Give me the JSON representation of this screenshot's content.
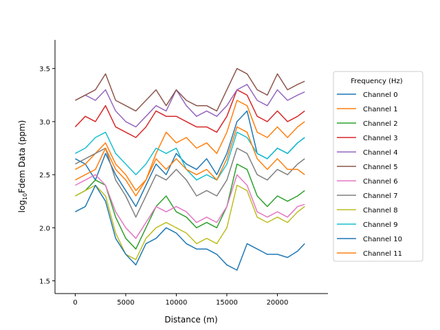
{
  "chart_data": {
    "type": "line",
    "xlabel": "Distance (m)",
    "ylabel_main": "log",
    "ylabel_sub": "10",
    "ylabel_rest": "Fdem Data (ppm)",
    "xlim": [
      -2000,
      25000
    ],
    "ylim": [
      1.38,
      3.77
    ],
    "xticks": [
      0,
      5000,
      10000,
      15000,
      20000
    ],
    "xtick_labels": [
      "0",
      "5000",
      "10000",
      "15000",
      "20000"
    ],
    "yticks": [
      1.5,
      2.0,
      2.5,
      3.0,
      3.5
    ],
    "ytick_labels": [
      "1.5",
      "2.0",
      "2.5",
      "3.0",
      "3.5"
    ],
    "legend": {
      "title": "Frequency (Hz)",
      "placement": "center-right"
    },
    "x": [
      0,
      1000,
      2000,
      3000,
      4000,
      5000,
      6000,
      7000,
      8000,
      9000,
      10000,
      11000,
      12000,
      13000,
      14000,
      15000,
      16000,
      17000,
      18000,
      19000,
      20000,
      21000,
      22000,
      22700
    ],
    "series": [
      {
        "name": "Channel 0",
        "color": "#1f77b4",
        "values": [
          2.65,
          2.6,
          2.45,
          2.7,
          2.5,
          2.35,
          2.2,
          2.4,
          2.6,
          2.5,
          2.7,
          2.6,
          2.55,
          2.65,
          2.5,
          2.7,
          3.0,
          3.1,
          2.7,
          2.65,
          2.75,
          2.7,
          2.8,
          2.85
        ]
      },
      {
        "name": "Channel 1",
        "color": "#ff7f0e",
        "values": [
          2.55,
          2.6,
          2.7,
          2.8,
          2.6,
          2.5,
          2.35,
          2.45,
          2.7,
          2.9,
          2.8,
          2.85,
          2.75,
          2.8,
          2.7,
          2.9,
          3.2,
          3.15,
          2.9,
          2.85,
          2.95,
          2.85,
          2.95,
          3.0
        ]
      },
      {
        "name": "Channel 2",
        "color": "#2ca02c",
        "values": [
          2.3,
          2.35,
          2.45,
          2.4,
          2.1,
          1.9,
          1.8,
          2.0,
          2.2,
          2.3,
          2.15,
          2.1,
          2.0,
          2.05,
          2.0,
          2.2,
          2.6,
          2.55,
          2.3,
          2.2,
          2.3,
          2.25,
          2.3,
          2.35
        ]
      },
      {
        "name": "Channel 3",
        "color": "#d62728",
        "values": [
          2.95,
          3.05,
          3.0,
          3.15,
          2.95,
          2.9,
          2.85,
          2.95,
          3.1,
          3.05,
          3.05,
          3.0,
          2.95,
          2.95,
          2.9,
          3.05,
          3.3,
          3.25,
          3.05,
          3.0,
          3.1,
          3.0,
          3.05,
          3.1
        ]
      },
      {
        "name": "Channel 4",
        "color": "#9467bd",
        "values": [
          3.2,
          3.25,
          3.2,
          3.3,
          3.1,
          3.0,
          2.95,
          3.05,
          3.15,
          3.1,
          3.3,
          3.15,
          3.05,
          3.1,
          3.05,
          3.15,
          3.3,
          3.35,
          3.2,
          3.15,
          3.3,
          3.2,
          3.25,
          3.28
        ]
      },
      {
        "name": "Channel 5",
        "color": "#8c564b",
        "values": [
          3.2,
          3.25,
          3.3,
          3.45,
          3.2,
          3.15,
          3.1,
          3.2,
          3.3,
          3.15,
          3.3,
          3.2,
          3.15,
          3.15,
          3.1,
          3.3,
          3.5,
          3.45,
          3.3,
          3.25,
          3.45,
          3.3,
          3.35,
          3.38
        ]
      },
      {
        "name": "Channel 6",
        "color": "#e377c2",
        "values": [
          2.4,
          2.45,
          2.5,
          2.4,
          2.15,
          2.0,
          1.9,
          2.05,
          2.2,
          2.15,
          2.2,
          2.15,
          2.05,
          2.1,
          2.05,
          2.2,
          2.5,
          2.4,
          2.15,
          2.1,
          2.15,
          2.1,
          2.2,
          2.22
        ]
      },
      {
        "name": "Channel 7",
        "color": "#7f7f7f",
        "values": [
          2.6,
          2.65,
          2.7,
          2.75,
          2.45,
          2.3,
          2.1,
          2.3,
          2.5,
          2.45,
          2.55,
          2.45,
          2.3,
          2.35,
          2.3,
          2.45,
          2.75,
          2.7,
          2.5,
          2.45,
          2.55,
          2.5,
          2.6,
          2.65
        ]
      },
      {
        "name": "Channel 8",
        "color": "#bcbd22",
        "values": [
          2.3,
          2.35,
          2.4,
          2.3,
          1.95,
          1.75,
          1.7,
          1.9,
          2.0,
          2.05,
          2.0,
          1.95,
          1.85,
          1.9,
          1.85,
          2.0,
          2.4,
          2.35,
          2.1,
          2.05,
          2.1,
          2.05,
          2.15,
          2.2
        ]
      },
      {
        "name": "Channel 9",
        "color": "#17becf",
        "values": [
          2.7,
          2.75,
          2.85,
          2.9,
          2.7,
          2.6,
          2.5,
          2.6,
          2.75,
          2.7,
          2.75,
          2.55,
          2.45,
          2.5,
          2.45,
          2.6,
          2.9,
          2.85,
          2.7,
          2.65,
          2.75,
          2.7,
          2.8,
          2.85
        ]
      },
      {
        "name": "Channel 10",
        "color": "#1f77b4",
        "values": [
          2.15,
          2.2,
          2.4,
          2.25,
          1.9,
          1.75,
          1.65,
          1.85,
          1.9,
          2.0,
          1.95,
          1.85,
          1.8,
          1.8,
          1.75,
          1.65,
          1.6,
          1.85,
          1.8,
          1.75,
          1.75,
          1.72,
          1.78,
          1.85
        ]
      },
      {
        "name": "Channel 11",
        "color": "#ff7f0e",
        "values": [
          2.45,
          2.5,
          2.55,
          2.75,
          2.55,
          2.45,
          2.3,
          2.45,
          2.65,
          2.55,
          2.65,
          2.55,
          2.5,
          2.55,
          2.45,
          2.65,
          2.95,
          2.9,
          2.65,
          2.55,
          2.65,
          2.55,
          2.55,
          2.5
        ]
      }
    ]
  }
}
